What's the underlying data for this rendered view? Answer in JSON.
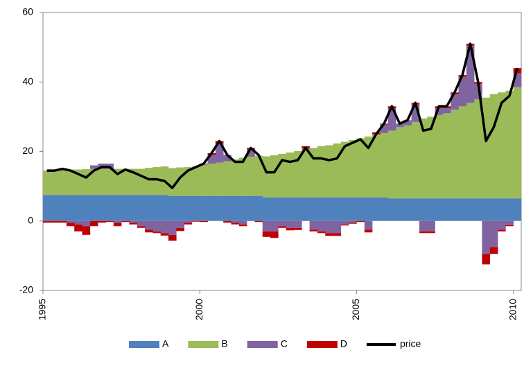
{
  "chart_data": {
    "type": "stacked-bar-line",
    "x": [
      1995,
      1995.25,
      1995.5,
      1995.75,
      1996,
      1996.25,
      1996.5,
      1996.75,
      1997,
      1997.25,
      1997.5,
      1997.75,
      1998,
      1998.25,
      1998.5,
      1998.75,
      1999,
      1999.25,
      1999.5,
      1999.75,
      2000,
      2000.25,
      2000.5,
      2000.75,
      2001,
      2001.25,
      2001.5,
      2001.75,
      2002,
      2002.25,
      2002.5,
      2002.75,
      2003,
      2003.25,
      2003.5,
      2003.75,
      2004,
      2004.25,
      2004.5,
      2004.75,
      2005,
      2005.25,
      2005.5,
      2005.75,
      2006,
      2006.25,
      2006.5,
      2006.75,
      2007,
      2007.25,
      2007.5,
      2007.75,
      2008,
      2008.25,
      2008.5,
      2008.75,
      2009,
      2009.25,
      2009.5,
      2009.75,
      2010
    ],
    "xlim": [
      1995,
      2010.25
    ],
    "xticks": [
      1995,
      2000,
      2005,
      2010
    ],
    "ylim": [
      -20,
      60
    ],
    "yticks": [
      -20,
      0,
      20,
      40,
      60
    ],
    "series": [
      {
        "name": "A",
        "color": "#4f81bd",
        "kind": "bar",
        "values": [
          7.5,
          7.5,
          7.5,
          7.5,
          7.5,
          7.5,
          7.5,
          7.5,
          7.5,
          7.5,
          7.5,
          7.5,
          7.5,
          7.5,
          7.5,
          7.5,
          7.2,
          7.2,
          7.2,
          7.2,
          7.2,
          7.2,
          7.2,
          7.2,
          7.2,
          7.2,
          7.2,
          7.2,
          6.8,
          6.8,
          6.8,
          6.8,
          6.8,
          6.8,
          6.8,
          6.8,
          6.8,
          6.8,
          6.8,
          6.8,
          6.8,
          6.8,
          6.8,
          6.8,
          6.5,
          6.5,
          6.5,
          6.5,
          6.5,
          6.5,
          6.5,
          6.5,
          6.5,
          6.5,
          6.5,
          6.5,
          6.5,
          6.5,
          6.5,
          6.5,
          6.5
        ]
      },
      {
        "name": "B",
        "color": "#9bbb59",
        "kind": "bar",
        "values": [
          7,
          7,
          7.2,
          7.3,
          7.3,
          7.4,
          7.5,
          7.5,
          7.5,
          7.5,
          7.5,
          7.5,
          7.5,
          7.8,
          8,
          8.2,
          8,
          8.2,
          8.3,
          8.5,
          9,
          9.3,
          9.6,
          10,
          10.5,
          11,
          11.3,
          11.6,
          11.8,
          12.1,
          12.5,
          12.9,
          13.3,
          13.8,
          14.2,
          14.7,
          15,
          15.5,
          16,
          16.5,
          17,
          17.5,
          18,
          18.5,
          19.5,
          20.5,
          21,
          22,
          23,
          23.5,
          24,
          24.5,
          25.5,
          26.5,
          27.5,
          28.5,
          29,
          30,
          30.5,
          31,
          32
        ]
      },
      {
        "name": "C",
        "color": "#8064a2",
        "kind": "bar",
        "values": [
          0,
          0,
          0.5,
          -0.5,
          -1,
          -1.5,
          1,
          1.5,
          1.5,
          -0.5,
          0,
          -0.5,
          -1.5,
          -2.5,
          -3,
          -3.5,
          -4,
          -2,
          -0.5,
          0,
          0.3,
          2.5,
          5.5,
          1.8,
          -0.5,
          -1,
          2.2,
          0,
          -3,
          -3,
          -1.5,
          -2,
          -2,
          0.4,
          -2.5,
          -3,
          -3.5,
          -3.5,
          -1,
          -0.5,
          0,
          -2.5,
          0.2,
          2.5,
          6.5,
          1,
          1.5,
          5,
          -3,
          -3,
          2,
          1.5,
          4.5,
          8.5,
          16.5,
          4.5,
          -9.5,
          -7.5,
          -2.5,
          -1.2,
          4
        ]
      },
      {
        "name": "D",
        "color": "#c00000",
        "kind": "bar",
        "values": [
          -0.5,
          -0.5,
          -0.5,
          -1,
          -2,
          -2.5,
          -1.5,
          -0.5,
          -0.3,
          -1,
          -0.3,
          -0.5,
          -0.5,
          -0.8,
          -0.5,
          -0.7,
          -1.7,
          -0.9,
          -0.5,
          -0.2,
          -0.3,
          0.5,
          0.7,
          -0.5,
          -0.5,
          -0.5,
          0.3,
          -0.3,
          -1.6,
          -1.9,
          -0.5,
          -0.7,
          -0.6,
          0.5,
          -0.5,
          -0.5,
          -0.8,
          -0.8,
          -0.3,
          -0.3,
          -0.3,
          -0.8,
          0.5,
          0.2,
          0.5,
          0,
          0,
          0.5,
          -0.5,
          -0.5,
          0.5,
          0.5,
          0.5,
          0.5,
          0.5,
          0.5,
          -3,
          -2,
          -0.5,
          -0.3,
          1.5
        ]
      },
      {
        "name": "price",
        "color": "#000000",
        "kind": "line",
        "values": [
          14.5,
          14.5,
          15,
          14.5,
          13.5,
          12.5,
          14.5,
          15.5,
          15.5,
          13.5,
          14.8,
          14,
          13,
          12,
          12,
          11.5,
          9.5,
          12.5,
          14.5,
          15.5,
          16.5,
          19.5,
          23,
          19,
          17,
          17,
          21,
          19,
          14,
          14,
          17.5,
          17,
          17.5,
          21,
          18,
          18,
          17.5,
          18,
          21.5,
          22.5,
          23.5,
          21,
          25,
          28,
          33,
          28,
          29,
          34,
          26,
          26.5,
          33,
          33,
          37,
          42,
          51,
          40,
          23,
          27,
          34,
          36,
          44
        ]
      }
    ]
  }
}
